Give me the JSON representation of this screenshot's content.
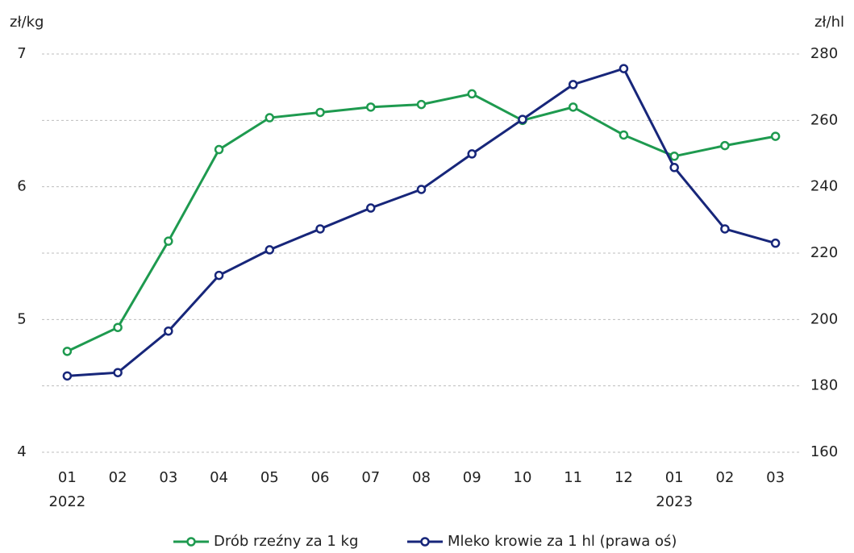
{
  "chart_data": {
    "type": "line",
    "categories": [
      "01",
      "02",
      "03",
      "04",
      "05",
      "06",
      "07",
      "08",
      "09",
      "10",
      "11",
      "12",
      "01",
      "02",
      "03"
    ],
    "category_groups": [
      "2022",
      null,
      null,
      null,
      null,
      null,
      null,
      null,
      null,
      null,
      null,
      null,
      "2023",
      null,
      null
    ],
    "y_label": "zł/kg",
    "y2_label": "zł/hl",
    "ylim": [
      4,
      7
    ],
    "yticks": [
      4,
      5,
      6,
      7
    ],
    "y2lim": [
      160,
      280
    ],
    "y2ticks": [
      160,
      180,
      200,
      220,
      240,
      260,
      280
    ],
    "grid": true,
    "legend": "bottom",
    "series": [
      {
        "name": "Drób rzeźny za 1 kg",
        "color": "#1e9a4f",
        "values": [
          4.76,
          4.94,
          5.59,
          6.28,
          6.52,
          6.56,
          6.6,
          6.62,
          6.7,
          6.5,
          6.6,
          6.39,
          6.23,
          6.31,
          6.38
        ]
      },
      {
        "name": "Mleko krowie za 1 hl (prawa oś)",
        "color": "#17267a",
        "axis": "y2",
        "values": [
          183,
          184,
          196.5,
          213.3,
          221,
          227.3,
          233.6,
          239.2,
          249.9,
          260.3,
          270.8,
          275.6,
          245.8,
          227.3,
          223
        ]
      }
    ]
  }
}
